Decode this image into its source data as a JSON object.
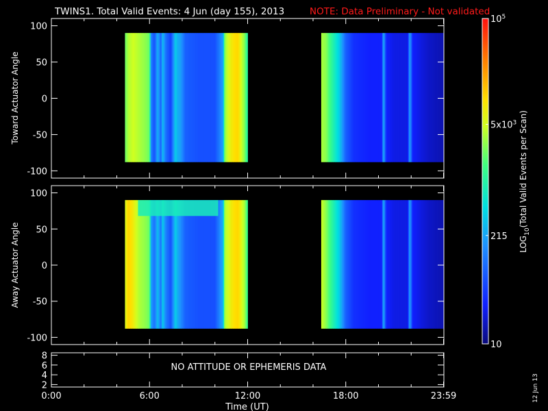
{
  "header": {
    "title": "TWINS1. Total Valid Events:  4 Jun (day 155), 2013",
    "note": "NOTE: Data Preliminary - Not validated"
  },
  "date_stamp": "12 Jun 13",
  "chart_data": [
    {
      "type": "heatmap",
      "panel": "toward",
      "ylabel": "Toward Actuator Angle",
      "x_unit": "hours UT",
      "xlim": [
        0,
        24
      ],
      "ylim": [
        -110,
        110
      ],
      "yticks": [
        -100,
        -50,
        0,
        50,
        100
      ],
      "y_extent": [
        -88,
        90
      ],
      "data_blocks": [
        {
          "start": 4.5,
          "end": 12.0
        },
        {
          "start": 16.5,
          "end": 24.0
        }
      ],
      "profile_hours": [
        4.5,
        4.7,
        5.0,
        5.4,
        5.8,
        6.0,
        6.1,
        6.3,
        6.5,
        6.7,
        6.8,
        7.0,
        7.3,
        7.6,
        7.7,
        7.9,
        8.2,
        9.0,
        10.0,
        10.5,
        10.6,
        10.8,
        11.0,
        11.4,
        11.8,
        12.0,
        16.5,
        16.8,
        17.2,
        17.6,
        18.0,
        18.5,
        19.5,
        20.2,
        20.3,
        20.5,
        21.0,
        21.8,
        21.9,
        22.1,
        23.0,
        24.0
      ],
      "profile_log10": [
        3.3,
        3.5,
        3.6,
        3.5,
        3.4,
        3.3,
        2.1,
        1.8,
        2.4,
        1.9,
        2.5,
        2.0,
        1.7,
        2.6,
        2.4,
        2.3,
        1.9,
        1.8,
        1.8,
        2.3,
        3.4,
        3.6,
        3.7,
        3.8,
        3.4,
        3.0,
        3.5,
        3.4,
        3.0,
        2.6,
        1.9,
        1.6,
        1.5,
        1.5,
        2.4,
        1.5,
        1.4,
        1.4,
        2.4,
        1.5,
        1.3,
        1.2
      ]
    },
    {
      "type": "heatmap",
      "panel": "away",
      "ylabel": "Away Actuator Angle",
      "x_unit": "hours UT",
      "xlim": [
        0,
        24
      ],
      "ylim": [
        -110,
        110
      ],
      "yticks": [
        -100,
        -50,
        0,
        50,
        100
      ],
      "y_extent": [
        -88,
        90
      ],
      "data_blocks": [
        {
          "start": 4.5,
          "end": 12.0
        },
        {
          "start": 16.5,
          "end": 24.0
        }
      ],
      "enhanced_band": {
        "start": 5.3,
        "end": 10.2,
        "y_from": 68,
        "y_to": 90,
        "log10": 2.9
      },
      "profile_hours": [
        4.5,
        4.7,
        5.0,
        5.4,
        5.8,
        6.0,
        6.1,
        6.3,
        6.5,
        6.7,
        6.8,
        7.0,
        7.3,
        7.6,
        7.7,
        7.9,
        8.2,
        9.0,
        10.0,
        10.5,
        10.6,
        10.8,
        11.0,
        11.4,
        11.8,
        12.0,
        16.5,
        16.8,
        17.2,
        17.6,
        18.0,
        18.5,
        19.5,
        20.2,
        20.3,
        20.5,
        21.0,
        21.8,
        21.9,
        22.1,
        23.0,
        24.0
      ],
      "profile_log10": [
        3.6,
        3.8,
        3.7,
        3.5,
        3.4,
        3.3,
        2.3,
        2.0,
        2.5,
        2.0,
        2.6,
        2.1,
        1.8,
        2.6,
        2.4,
        2.2,
        1.9,
        1.8,
        1.8,
        2.4,
        3.5,
        3.6,
        3.7,
        3.8,
        3.5,
        3.1,
        3.6,
        3.4,
        3.0,
        2.6,
        1.9,
        1.6,
        1.5,
        1.5,
        2.4,
        1.5,
        1.4,
        1.4,
        2.4,
        1.5,
        1.3,
        1.2
      ]
    },
    {
      "type": "line",
      "panel": "ephemeris",
      "ylabel": "",
      "xlim": [
        0,
        24
      ],
      "ylim": [
        1.5,
        8.5
      ],
      "yticks": [
        2,
        4,
        6,
        8
      ],
      "message": "NO ATTITUDE OR EPHEMERIS DATA",
      "xticks": [
        {
          "value": 0,
          "label": "0:00"
        },
        {
          "value": 6,
          "label": "6:00"
        },
        {
          "value": 12,
          "label": "12:00"
        },
        {
          "value": 18,
          "label": "18:00"
        },
        {
          "value": 23.98,
          "label": "23:59"
        }
      ],
      "xlabel": "Time (UT)"
    },
    {
      "type": "colorbar",
      "title": "LOG10(Total Valid Events per Scan)",
      "range_log10": [
        1,
        5
      ],
      "tick_labels": [
        {
          "log10": 1,
          "label": "10"
        },
        {
          "log10": 2.3324,
          "label": "215"
        },
        {
          "log10": 3.699,
          "label": "5x10^3"
        },
        {
          "log10": 5,
          "label": "10^5"
        }
      ]
    }
  ]
}
